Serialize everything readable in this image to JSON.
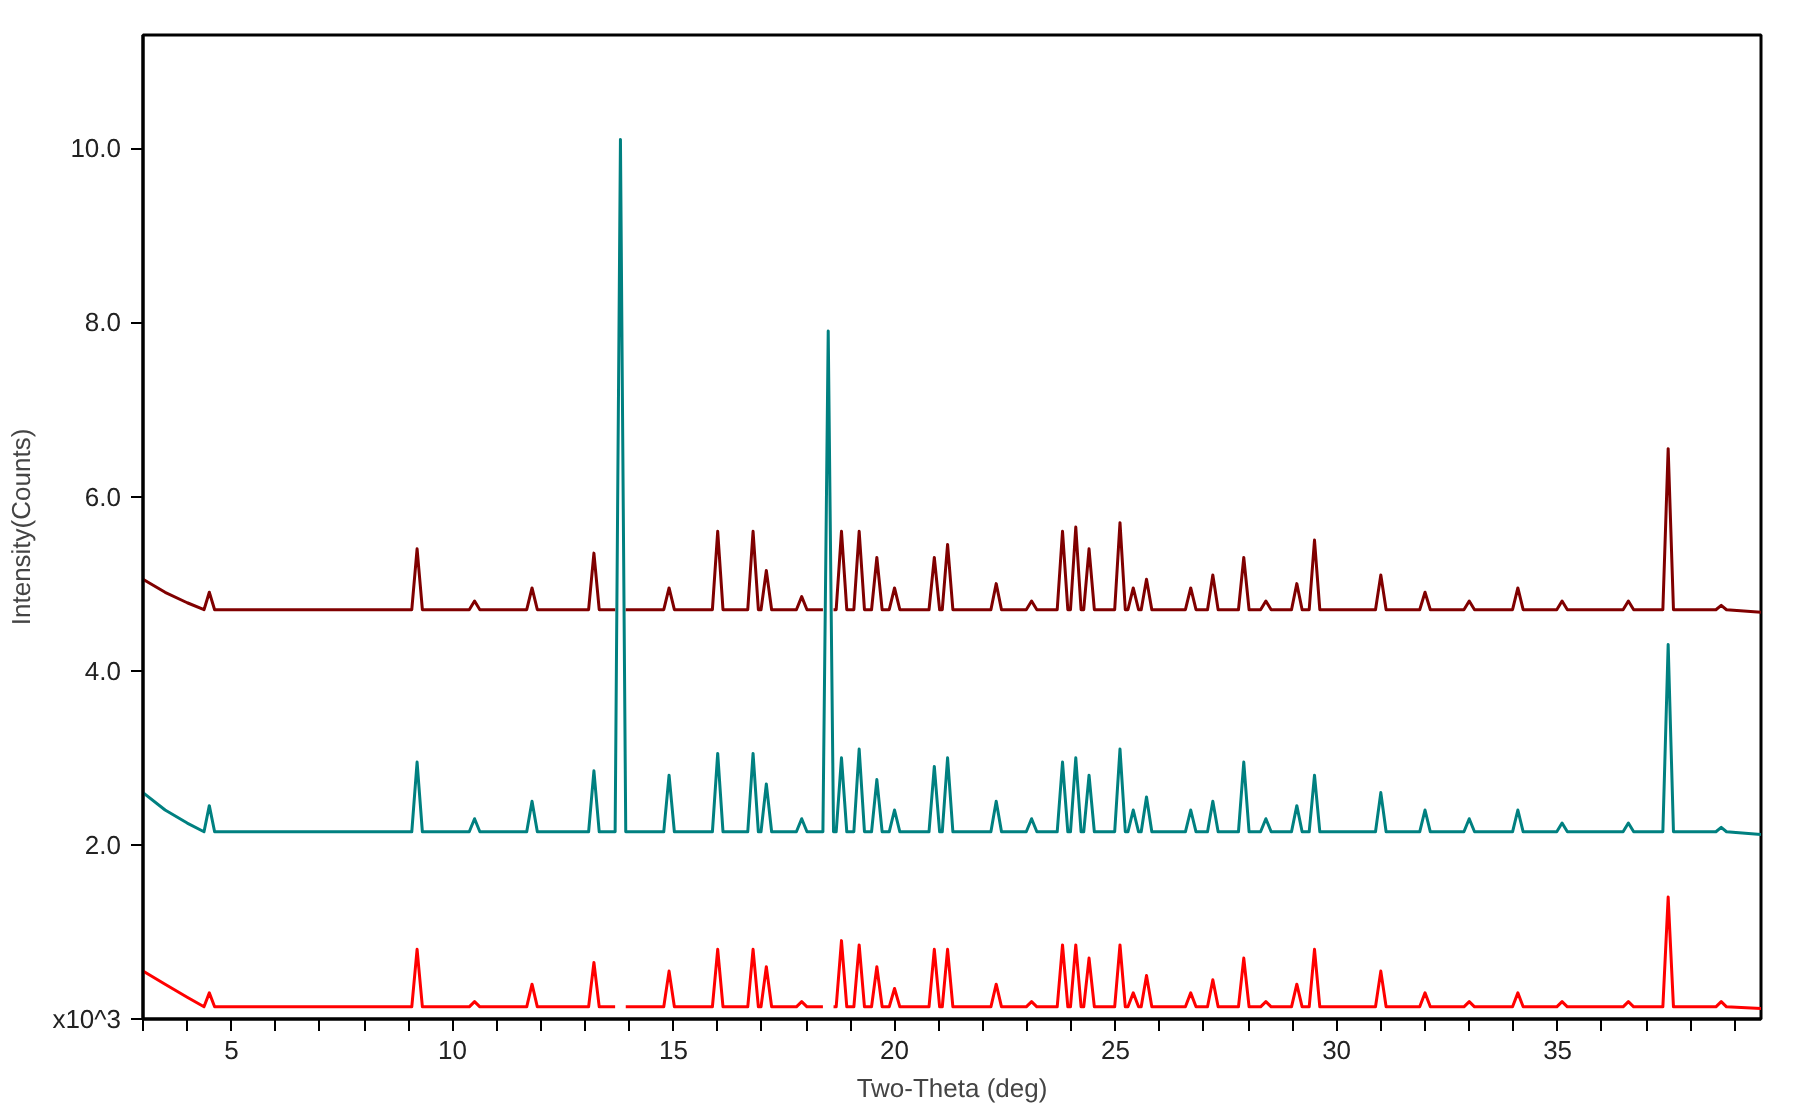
{
  "chart_data": {
    "type": "line",
    "xlabel": "Two-Theta (deg)",
    "ylabel": "Intensity(Counts)",
    "xlim": [
      3,
      39.6
    ],
    "ylim": [
      0,
      11.3
    ],
    "xticks": [
      {
        "value": 3,
        "label": null
      },
      {
        "value": 4,
        "label": null
      },
      5,
      {
        "value": 6,
        "label": null
      },
      {
        "value": 7,
        "label": null
      },
      {
        "value": 8,
        "label": null
      },
      {
        "value": 9,
        "label": null
      },
      10,
      {
        "value": 11,
        "label": null
      },
      {
        "value": 12,
        "label": null
      },
      {
        "value": 13,
        "label": null
      },
      {
        "value": 14,
        "label": null
      },
      15,
      {
        "value": 16,
        "label": null
      },
      {
        "value": 17,
        "label": null
      },
      {
        "value": 18,
        "label": null
      },
      {
        "value": 19,
        "label": null
      },
      20,
      {
        "value": 21,
        "label": null
      },
      {
        "value": 22,
        "label": null
      },
      {
        "value": 23,
        "label": null
      },
      {
        "value": 24,
        "label": null
      },
      25,
      {
        "value": 26,
        "label": null
      },
      {
        "value": 27,
        "label": null
      },
      {
        "value": 28,
        "label": null
      },
      {
        "value": 29,
        "label": null
      },
      30,
      {
        "value": 31,
        "label": null
      },
      {
        "value": 32,
        "label": null
      },
      {
        "value": 33,
        "label": null
      },
      {
        "value": 34,
        "label": null
      },
      35,
      {
        "value": 36,
        "label": null
      },
      {
        "value": 37,
        "label": null
      },
      {
        "value": 38,
        "label": null
      },
      {
        "value": 39,
        "label": null
      }
    ],
    "yticks": [
      {
        "value": 0,
        "label": "x10^3"
      },
      {
        "value": 2,
        "label": "2.0"
      },
      {
        "value": 4,
        "label": "4.0"
      },
      {
        "value": 6,
        "label": "6.0"
      },
      {
        "value": 8,
        "label": "8.0"
      },
      {
        "value": 10,
        "label": "10.0"
      }
    ],
    "grid": false,
    "marker": "none",
    "line_style": "solid",
    "x": [
      3.0,
      3.5,
      4.0,
      4.38,
      4.5,
      4.62,
      9.08,
      9.2,
      9.32,
      10.38,
      10.5,
      10.62,
      11.68,
      11.8,
      11.92,
      13.08,
      13.2,
      13.32,
      13.68,
      13.8,
      13.92,
      14.78,
      14.9,
      15.02,
      15.88,
      16.0,
      16.12,
      16.68,
      16.8,
      16.92,
      16.98,
      17.1,
      17.22,
      17.78,
      17.9,
      18.02,
      18.38,
      18.5,
      18.62,
      18.68,
      18.8,
      18.92,
      19.08,
      19.2,
      19.32,
      19.48,
      19.6,
      19.72,
      19.88,
      20.0,
      20.12,
      20.78,
      20.9,
      21.02,
      21.08,
      21.2,
      21.32,
      22.18,
      22.3,
      22.42,
      22.98,
      23.1,
      23.22,
      23.68,
      23.8,
      23.92,
      23.98,
      24.1,
      24.22,
      24.28,
      24.4,
      24.52,
      24.98,
      25.1,
      25.22,
      25.28,
      25.4,
      25.52,
      25.58,
      25.7,
      25.82,
      26.58,
      26.7,
      26.82,
      27.08,
      27.2,
      27.32,
      27.78,
      27.9,
      28.02,
      28.28,
      28.4,
      28.52,
      28.98,
      29.1,
      29.22,
      29.38,
      29.5,
      29.62,
      30.88,
      31.0,
      31.12,
      31.88,
      32.0,
      32.12,
      32.88,
      33.0,
      33.12,
      33.98,
      34.1,
      34.22,
      34.98,
      35.1,
      35.22,
      36.48,
      36.6,
      36.72,
      37.38,
      37.5,
      37.62,
      38.58,
      38.7,
      38.82,
      39.6
    ],
    "series": [
      {
        "color": "#ff0000",
        "values": [
          0.55,
          0.4,
          0.25,
          0.14,
          0.3,
          0.14,
          0.14,
          0.8,
          0.14,
          0.14,
          0.2,
          0.14,
          0.14,
          0.4,
          0.14,
          0.14,
          0.65,
          0.14,
          0.14,
          null,
          0.14,
          0.14,
          0.55,
          0.14,
          0.14,
          0.8,
          0.14,
          0.14,
          0.8,
          0.14,
          0.14,
          0.6,
          0.14,
          0.14,
          0.2,
          0.14,
          0.14,
          null,
          0.14,
          0.14,
          0.9,
          0.14,
          0.14,
          0.85,
          0.14,
          0.14,
          0.6,
          0.14,
          0.14,
          0.35,
          0.14,
          0.14,
          0.8,
          0.14,
          0.14,
          0.8,
          0.14,
          0.14,
          0.4,
          0.14,
          0.14,
          0.2,
          0.14,
          0.14,
          0.85,
          0.14,
          0.14,
          0.85,
          0.14,
          0.14,
          0.7,
          0.14,
          0.14,
          0.85,
          0.14,
          0.14,
          0.3,
          0.14,
          0.14,
          0.5,
          0.14,
          0.14,
          0.3,
          0.14,
          0.14,
          0.45,
          0.14,
          0.14,
          0.7,
          0.14,
          0.14,
          0.2,
          0.14,
          0.14,
          0.4,
          0.14,
          0.14,
          0.8,
          0.14,
          0.14,
          0.55,
          0.14,
          0.14,
          0.3,
          0.14,
          0.14,
          0.2,
          0.14,
          0.14,
          0.3,
          0.14,
          0.14,
          0.2,
          0.14,
          0.14,
          0.2,
          0.14,
          0.14,
          1.4,
          0.14,
          0.14,
          0.2,
          0.14,
          0.12
        ]
      },
      {
        "color": "#008080",
        "values": [
          2.6,
          2.4,
          2.25,
          2.15,
          2.45,
          2.15,
          2.15,
          2.95,
          2.15,
          2.15,
          2.3,
          2.15,
          2.15,
          2.5,
          2.15,
          2.15,
          2.85,
          2.15,
          2.15,
          10.1,
          2.15,
          2.15,
          2.8,
          2.15,
          2.15,
          3.05,
          2.15,
          2.15,
          3.05,
          2.15,
          2.15,
          2.7,
          2.15,
          2.15,
          2.3,
          2.15,
          2.15,
          7.9,
          2.15,
          2.15,
          3.0,
          2.15,
          2.15,
          3.1,
          2.15,
          2.15,
          2.75,
          2.15,
          2.15,
          2.4,
          2.15,
          2.15,
          2.9,
          2.15,
          2.15,
          3.0,
          2.15,
          2.15,
          2.5,
          2.15,
          2.15,
          2.3,
          2.15,
          2.15,
          2.95,
          2.15,
          2.15,
          3.0,
          2.15,
          2.15,
          2.8,
          2.15,
          2.15,
          3.1,
          2.15,
          2.15,
          2.4,
          2.15,
          2.15,
          2.55,
          2.15,
          2.15,
          2.4,
          2.15,
          2.15,
          2.5,
          2.15,
          2.15,
          2.95,
          2.15,
          2.15,
          2.3,
          2.15,
          2.15,
          2.45,
          2.15,
          2.15,
          2.8,
          2.15,
          2.15,
          2.6,
          2.15,
          2.15,
          2.4,
          2.15,
          2.15,
          2.3,
          2.15,
          2.15,
          2.4,
          2.15,
          2.15,
          2.25,
          2.15,
          2.15,
          2.25,
          2.15,
          2.15,
          4.3,
          2.15,
          2.15,
          2.2,
          2.15,
          2.12
        ]
      },
      {
        "color": "#800000",
        "values": [
          5.05,
          4.9,
          4.78,
          4.7,
          4.9,
          4.7,
          4.7,
          5.4,
          4.7,
          4.7,
          4.8,
          4.7,
          4.7,
          4.95,
          4.7,
          4.7,
          5.35,
          4.7,
          4.7,
          null,
          4.7,
          4.7,
          4.95,
          4.7,
          4.7,
          5.6,
          4.7,
          4.7,
          5.6,
          4.7,
          4.7,
          5.15,
          4.7,
          4.7,
          4.85,
          4.7,
          4.7,
          null,
          4.7,
          4.7,
          5.6,
          4.7,
          4.7,
          5.6,
          4.7,
          4.7,
          5.3,
          4.7,
          4.7,
          4.95,
          4.7,
          4.7,
          5.3,
          4.7,
          4.7,
          5.45,
          4.7,
          4.7,
          5.0,
          4.7,
          4.7,
          4.8,
          4.7,
          4.7,
          5.6,
          4.7,
          4.7,
          5.65,
          4.7,
          4.7,
          5.4,
          4.7,
          4.7,
          5.7,
          4.7,
          4.7,
          4.95,
          4.7,
          4.7,
          5.05,
          4.7,
          4.7,
          4.95,
          4.7,
          4.7,
          5.1,
          4.7,
          4.7,
          5.3,
          4.7,
          4.7,
          4.8,
          4.7,
          4.7,
          5.0,
          4.7,
          4.7,
          5.5,
          4.7,
          4.7,
          5.1,
          4.7,
          4.7,
          4.9,
          4.7,
          4.7,
          4.8,
          4.7,
          4.7,
          4.95,
          4.7,
          4.7,
          4.8,
          4.7,
          4.7,
          4.8,
          4.7,
          4.7,
          6.55,
          4.7,
          4.7,
          4.75,
          4.7,
          4.67
        ]
      }
    ]
  }
}
